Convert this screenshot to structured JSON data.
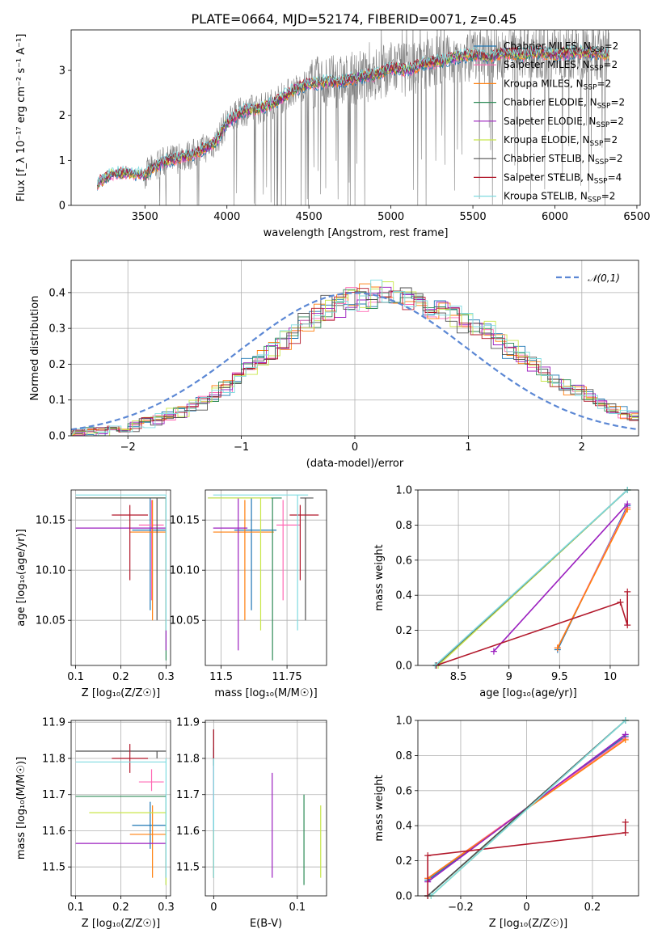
{
  "colors": {
    "grid": "#b0b0b0",
    "normal_curve": "#5b87d4",
    "Chabrier MILES": "#1f77b4",
    "Salpeter MILES": "#ff69b4",
    "Kroupa MILES": "#ff7f0e",
    "Chabrier ELODIE": "#2e8b57",
    "Salpeter ELODIE": "#9b1fbf",
    "Kroupa ELODIE": "#c8e64a",
    "Chabrier STELIB": "#505050",
    "Salpeter STELIB": "#b2182b",
    "Kroupa STELIB": "#7fdbe0"
  },
  "chart_data": [
    {
      "id": "spectrum",
      "type": "line",
      "title": "PLATE=0664, MJD=52174, FIBERID=0071, z=0.45",
      "xlabel": "wavelength [Angstrom, rest frame]",
      "ylabel": "Flux [f_λ 10⁻¹⁷ erg cm⁻² s⁻¹ A⁻¹]",
      "xlim": [
        3050,
        6520
      ],
      "ylim": [
        0,
        3.9
      ],
      "xticks": [
        3500,
        4000,
        4500,
        5000,
        5500,
        6000,
        6500
      ],
      "yticks": [
        0,
        1,
        2,
        3
      ],
      "grid": false,
      "legend_position": "top-right",
      "observed_flux_color": "#808080",
      "model_points": {
        "x": [
          3210,
          3300,
          3400,
          3500,
          3600,
          3700,
          3800,
          3930,
          4000,
          4100,
          4200,
          4300,
          4400,
          4500,
          4600,
          4700,
          4800,
          4900,
          5000,
          5100,
          5200,
          5300,
          5400,
          5500,
          5600,
          5700,
          5800,
          5900,
          6000,
          6100,
          6200,
          6300
        ],
        "y": [
          0.5,
          0.7,
          0.72,
          0.68,
          0.95,
          1.05,
          1.15,
          1.4,
          1.85,
          2.1,
          2.15,
          2.3,
          2.55,
          2.7,
          2.75,
          2.75,
          2.85,
          2.9,
          3.05,
          3.0,
          3.15,
          3.2,
          3.3,
          3.35,
          3.3,
          3.4,
          3.35,
          3.4,
          3.35,
          3.4,
          3.4,
          3.35
        ]
      },
      "series": [
        {
          "name": "Chabrier MILES, N_SSP=2",
          "name_main": "Chabrier MILES, N",
          "name_sub": "SSP",
          "name_tail": "=2"
        },
        {
          "name": "Salpeter MILES, N_SSP=2",
          "name_main": "Salpeter MILES, N",
          "name_sub": "SSP",
          "name_tail": "=2"
        },
        {
          "name": "Kroupa MILES, N_SSP=2",
          "name_main": "Kroupa MILES, N",
          "name_sub": "SSP",
          "name_tail": "=2"
        },
        {
          "name": "Chabrier ELODIE, N_SSP=2",
          "name_main": "Chabrier ELODIE, N",
          "name_sub": "SSP",
          "name_tail": "=2"
        },
        {
          "name": "Salpeter ELODIE, N_SSP=2",
          "name_main": "Salpeter ELODIE, N",
          "name_sub": "SSP",
          "name_tail": "=2"
        },
        {
          "name": "Kroupa ELODIE, N_SSP=2",
          "name_main": "Kroupa ELODIE, N",
          "name_sub": "SSP",
          "name_tail": "=2"
        },
        {
          "name": "Chabrier STELIB, N_SSP=2",
          "name_main": "Chabrier STELIB, N",
          "name_sub": "SSP",
          "name_tail": "=2"
        },
        {
          "name": "Salpeter STELIB, N_SSP=4",
          "name_main": "Salpeter STELIB, N",
          "name_sub": "SSP",
          "name_tail": "=4"
        },
        {
          "name": "Kroupa STELIB, N_SSP=2",
          "name_main": "Kroupa STELIB, N",
          "name_sub": "SSP",
          "name_tail": "=2"
        }
      ]
    },
    {
      "id": "residuals",
      "type": "line",
      "xlabel": "(data-model)/error",
      "ylabel": "Normed distribution",
      "xlim": [
        -2.5,
        2.5
      ],
      "ylim": [
        0,
        0.49
      ],
      "xticks": [
        -2,
        -1,
        0,
        1,
        2
      ],
      "yticks": [
        0.0,
        0.1,
        0.2,
        0.3,
        0.4
      ],
      "grid": true,
      "legend_position": "top-right",
      "reference_curve": "𝒩(0,1)",
      "histogram_bin_width": 0.1,
      "histogram_profile": {
        "x": [
          -2.5,
          -2.3,
          -2.1,
          -1.9,
          -1.7,
          -1.5,
          -1.3,
          -1.1,
          -0.9,
          -0.7,
          -0.5,
          -0.3,
          -0.1,
          0.1,
          0.3,
          0.5,
          0.7,
          0.9,
          1.1,
          1.3,
          1.5,
          1.7,
          1.9,
          2.1,
          2.3,
          2.5
        ],
        "y": [
          0.005,
          0.01,
          0.015,
          0.03,
          0.05,
          0.07,
          0.1,
          0.14,
          0.2,
          0.24,
          0.29,
          0.34,
          0.37,
          0.38,
          0.39,
          0.38,
          0.36,
          0.33,
          0.3,
          0.26,
          0.21,
          0.17,
          0.13,
          0.1,
          0.07,
          0.05
        ]
      }
    },
    {
      "id": "age_vs_Z",
      "type": "scatter",
      "xlabel": "Z [log₁₀(Z/Z☉)]",
      "ylabel": "age  [log₁₀(age/yr)]",
      "xlim": [
        0.09,
        0.31
      ],
      "ylim": [
        10.005,
        10.18
      ],
      "xticks": [
        0.1,
        0.2,
        0.3
      ],
      "yticks": [
        10.05,
        10.1,
        10.15
      ],
      "grid": true
    },
    {
      "id": "age_vs_mass",
      "type": "scatter",
      "xlabel": "mass [log₁₀(M/M☉)]",
      "xlim": [
        11.44,
        11.9
      ],
      "ylim": [
        10.005,
        10.18
      ],
      "xticks": [
        11.5,
        11.75
      ],
      "yticks": [
        10.05,
        10.1,
        10.15
      ],
      "grid": true
    },
    {
      "id": "massweight_vs_age",
      "type": "line",
      "xlabel": "age  [log₁₀(age/yr)]",
      "ylabel": "mass weight",
      "xlim": [
        8.1,
        10.28
      ],
      "ylim": [
        0,
        1
      ],
      "xticks": [
        8.5,
        9.0,
        9.5,
        10.0
      ],
      "yticks": [
        0.0,
        0.2,
        0.4,
        0.6,
        0.8,
        1.0
      ],
      "grid": true
    },
    {
      "id": "mass_vs_Z",
      "type": "scatter",
      "xlabel": "Z [log₁₀(Z/Z☉)]",
      "ylabel": "mass [log₁₀(M/M☉)]",
      "xlim": [
        0.09,
        0.31
      ],
      "ylim": [
        11.42,
        11.905
      ],
      "xticks": [
        0.1,
        0.2,
        0.3
      ],
      "yticks": [
        11.5,
        11.6,
        11.7,
        11.8,
        11.9
      ],
      "grid": true
    },
    {
      "id": "mass_vs_EBV",
      "type": "scatter",
      "xlabel": "E(B-V)",
      "xlim": [
        -0.01,
        0.135
      ],
      "ylim": [
        11.42,
        11.905
      ],
      "xticks": [
        0.0,
        0.1
      ],
      "yticks": [
        11.5,
        11.6,
        11.7,
        11.8,
        11.9
      ],
      "grid": true
    },
    {
      "id": "massweight_vs_Z",
      "type": "line",
      "xlabel": "Z [log₁₀(Z/Z☉)]",
      "ylabel": "mass weight",
      "xlim": [
        -0.33,
        0.34
      ],
      "ylim": [
        0,
        1
      ],
      "xticks": [
        -0.2,
        0.0,
        0.2
      ],
      "yticks": [
        0.0,
        0.2,
        0.4,
        0.6,
        0.8,
        1.0
      ],
      "grid": true
    }
  ],
  "fits": [
    {
      "name": "Chabrier MILES",
      "Z": 0.265,
      "Z_lo": 0.225,
      "Z_hi": 0.3,
      "age": 10.14,
      "age_lo": 10.06,
      "age_hi": 10.172,
      "mass": 11.615,
      "mass_lo": 11.55,
      "mass_hi": 11.68,
      "ebv": 0.0,
      "ebv_lo": 11.47,
      "ebv_hi": 11.83,
      "mw_age": [
        [
          9.48,
          0.09
        ],
        [
          10.17,
          0.91
        ]
      ],
      "mw_Z": [
        [
          -0.3,
          0.09
        ],
        [
          0.3,
          0.91
        ]
      ]
    },
    {
      "name": "Salpeter MILES",
      "Z": 0.268,
      "Z_lo": 0.24,
      "Z_hi": 0.295,
      "age": 10.145,
      "age_lo": 10.07,
      "age_hi": 10.17,
      "mass": 11.735,
      "mass_lo": 11.71,
      "mass_hi": 11.77,
      "ebv": 0.0,
      "ebv_lo": 11.66,
      "ebv_hi": 11.8,
      "mw_age": [
        [
          9.48,
          0.1
        ],
        [
          10.17,
          0.9
        ]
      ],
      "mw_Z": [
        [
          -0.3,
          0.1
        ],
        [
          0.3,
          0.9
        ]
      ]
    },
    {
      "name": "Kroupa MILES",
      "Z": 0.27,
      "Z_lo": 0.22,
      "Z_hi": 0.3,
      "age": 10.138,
      "age_lo": 10.05,
      "age_hi": 10.17,
      "mass": 11.59,
      "mass_lo": 11.47,
      "mass_hi": 11.67,
      "ebv": 0.0,
      "ebv_lo": 11.47,
      "ebv_hi": 11.6,
      "mw_age": [
        [
          9.48,
          0.1
        ],
        [
          10.17,
          0.89
        ]
      ],
      "mw_Z": [
        [
          -0.3,
          0.1
        ],
        [
          0.3,
          0.89
        ]
      ]
    },
    {
      "name": "Chabrier ELODIE",
      "Z": 0.3,
      "Z_lo": 0.1,
      "Z_hi": 0.3,
      "age": 10.172,
      "age_lo": 10.01,
      "age_hi": 10.172,
      "mass": 11.695,
      "mass_lo": 11.45,
      "mass_hi": 11.7,
      "ebv": 0.108,
      "ebv_lo": 11.45,
      "ebv_hi": 11.7,
      "mw_age": [
        [
          8.28,
          0.0
        ],
        [
          10.17,
          1.0
        ]
      ],
      "mw_Z": [
        [
          -0.3,
          0.0
        ],
        [
          0.3,
          1.0
        ]
      ]
    },
    {
      "name": "Salpeter ELODIE",
      "Z": 0.3,
      "Z_lo": 0.1,
      "Z_hi": 0.3,
      "age": 10.142,
      "age_lo": 10.02,
      "age_hi": 10.172,
      "mass": 11.565,
      "mass_lo": 11.47,
      "mass_hi": 11.57,
      "ebv": 0.07,
      "ebv_lo": 11.47,
      "ebv_hi": 11.76,
      "mw_age": [
        [
          8.85,
          0.08
        ],
        [
          10.17,
          0.92
        ]
      ],
      "mw_Z": [
        [
          -0.3,
          0.08
        ],
        [
          0.3,
          0.92
        ]
      ]
    },
    {
      "name": "Kroupa ELODIE",
      "Z": 0.3,
      "Z_lo": 0.13,
      "Z_hi": 0.3,
      "age": 10.172,
      "age_lo": 10.04,
      "age_hi": 10.172,
      "mass": 11.65,
      "mass_lo": 11.45,
      "mass_hi": 11.66,
      "ebv": 0.128,
      "ebv_lo": 11.47,
      "ebv_hi": 11.67,
      "mw_age": [
        [
          8.3,
          0.0
        ],
        [
          10.17,
          1.0
        ]
      ],
      "mw_Z": [
        [
          -0.29,
          0.0
        ],
        [
          0.3,
          1.0
        ]
      ]
    },
    {
      "name": "Chabrier STELIB",
      "Z": 0.28,
      "Z_lo": 0.1,
      "Z_hi": 0.3,
      "age": 10.172,
      "age_lo": 10.05,
      "age_hi": 10.172,
      "mass": 11.82,
      "mass_lo": 11.8,
      "mass_hi": 11.82,
      "ebv": 0.0,
      "ebv_lo": 11.78,
      "ebv_hi": 11.88,
      "mw_age": [
        [
          8.28,
          0.0
        ],
        [
          10.17,
          1.0
        ]
      ],
      "mw_Z": [
        [
          -0.3,
          0.0
        ],
        [
          0.3,
          1.0
        ]
      ]
    },
    {
      "name": "Salpeter STELIB",
      "Z": 0.22,
      "Z_lo": 0.18,
      "Z_hi": 0.26,
      "age": 10.155,
      "age_lo": 10.09,
      "age_hi": 10.165,
      "mass": 11.8,
      "mass_lo": 11.76,
      "mass_hi": 11.84,
      "ebv": 0.0,
      "ebv_lo": 11.8,
      "ebv_hi": 11.88,
      "mw_age": [
        [
          8.28,
          0.0
        ],
        [
          10.1,
          0.36
        ],
        [
          10.17,
          0.23
        ],
        [
          10.17,
          0.42
        ]
      ],
      "mw_Z": [
        [
          -0.3,
          0.0
        ],
        [
          -0.3,
          0.23
        ],
        [
          0.3,
          0.36
        ],
        [
          0.3,
          0.42
        ]
      ]
    },
    {
      "name": "Kroupa STELIB",
      "Z": 0.3,
      "Z_lo": 0.1,
      "Z_hi": 0.3,
      "age": 10.175,
      "age_lo": 10.04,
      "age_hi": 10.175,
      "mass": 11.79,
      "mass_lo": 11.47,
      "mass_hi": 11.8,
      "ebv": 0.0,
      "ebv_lo": 11.47,
      "ebv_hi": 11.8,
      "mw_age": [
        [
          8.27,
          0.0
        ],
        [
          10.17,
          1.0
        ]
      ],
      "mw_Z": [
        [
          -0.29,
          0.0
        ],
        [
          0.3,
          1.0
        ]
      ]
    }
  ]
}
